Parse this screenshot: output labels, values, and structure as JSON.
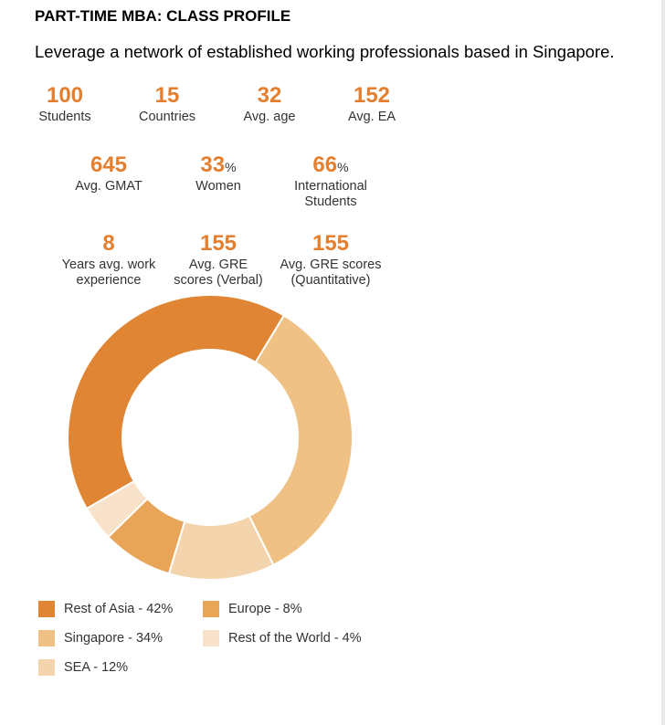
{
  "header": {
    "title": "PART-TIME MBA: CLASS PROFILE",
    "subtitle": "Leverage a network of established working professionals based in Singapore."
  },
  "stats": [
    {
      "value": "100",
      "suffix": "",
      "label_lines": [
        "Students"
      ]
    },
    {
      "value": "15",
      "suffix": "",
      "label_lines": [
        "Countries"
      ]
    },
    {
      "value": "32",
      "suffix": "",
      "label_lines": [
        "Avg. age"
      ]
    },
    {
      "value": "152",
      "suffix": "",
      "label_lines": [
        "Avg. EA"
      ]
    },
    {
      "value": "645",
      "suffix": "",
      "label_lines": [
        "Avg. GMAT"
      ]
    },
    {
      "value": "33",
      "suffix": "%",
      "label_lines": [
        "Women"
      ]
    },
    {
      "value": "66",
      "suffix": "%",
      "label_lines": [
        "International",
        "Students"
      ]
    },
    {
      "value": "8",
      "suffix": "",
      "label_lines": [
        "Years avg. work",
        "experience"
      ]
    },
    {
      "value": "155",
      "suffix": "",
      "label_lines": [
        "Avg. GRE",
        "scores (Verbal)"
      ]
    },
    {
      "value": "155",
      "suffix": "",
      "label_lines": [
        "Avg. GRE scores",
        "(Quantitative)"
      ]
    }
  ],
  "chart_data": {
    "type": "pie",
    "title": "",
    "categories": [
      "Rest of Asia",
      "Singapore",
      "SEA",
      "Europe",
      "Rest of the World"
    ],
    "values": [
      42,
      34,
      12,
      8,
      4
    ],
    "colors": [
      "#e08533",
      "#f0c185",
      "#f4d4ad",
      "#e8a457",
      "#f8e3ca"
    ],
    "legend_labels": [
      "Rest of Asia - 42%",
      "Singapore - 34%",
      "SEA - 12%",
      "Europe - 8%",
      "Rest of the World - 4%"
    ],
    "legend_placement": "bottom"
  }
}
